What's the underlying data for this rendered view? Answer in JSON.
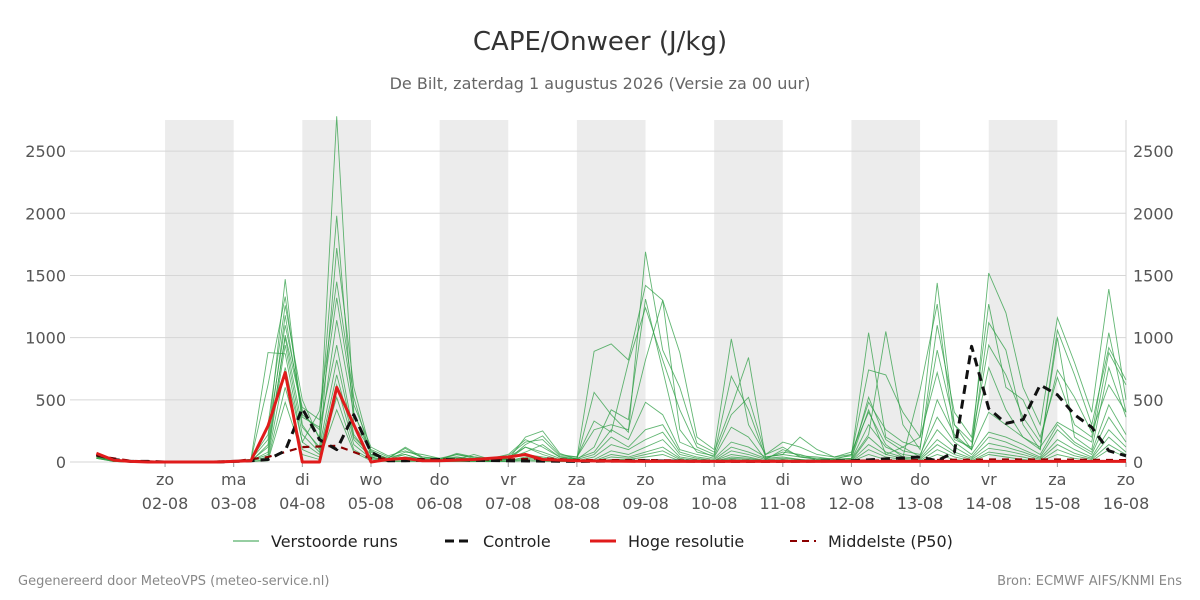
{
  "title": "CAPE/Onweer (J/kg)",
  "subtitle": "De Bilt, zaterdag  1 augustus 2026 (Versie za 00 uur)",
  "footer_left": "Gegenereerd door MeteoVPS (meteo-service.nl)",
  "footer_right": "Bron: ECMWF AIFS/KNMI Ens",
  "colors": {
    "perturbed": "#2e9e44",
    "control": "#111111",
    "high_res": "#e01b1b",
    "median": "#8b0000",
    "weekend_band": "#ececec",
    "grid": "#d6d6d6"
  },
  "chart_data": {
    "type": "line",
    "x_unit": "date (2026)",
    "xlim": [
      "2026-08-01T03:00",
      "2026-08-16T00:00"
    ],
    "ylim": [
      0,
      2750
    ],
    "yticks": [
      0,
      500,
      1000,
      1500,
      2000,
      2500
    ],
    "x_day_ticks": [
      {
        "day": "zo",
        "date": "02-08"
      },
      {
        "day": "ma",
        "date": "03-08"
      },
      {
        "day": "di",
        "date": "04-08"
      },
      {
        "day": "wo",
        "date": "05-08"
      },
      {
        "day": "do",
        "date": "06-08"
      },
      {
        "day": "vr",
        "date": "07-08"
      },
      {
        "day": "za",
        "date": "08-08"
      },
      {
        "day": "zo",
        "date": "09-08"
      },
      {
        "day": "ma",
        "date": "10-08"
      },
      {
        "day": "di",
        "date": "11-08"
      },
      {
        "day": "wo",
        "date": "12-08"
      },
      {
        "day": "do",
        "date": "13-08"
      },
      {
        "day": "vr",
        "date": "14-08"
      },
      {
        "day": "za",
        "date": "15-08"
      },
      {
        "day": "zo",
        "date": "16-08"
      }
    ],
    "shaded_days": [
      "2026-08-02",
      "2026-08-04",
      "2026-08-06",
      "2026-08-08",
      "2026-08-10",
      "2026-08-12",
      "2026-08-14"
    ],
    "grid": true,
    "legend_position": "bottom",
    "legend": [
      "Verstoorde runs",
      "Controle",
      "Hoge resolutie",
      "Middelste (P50)"
    ],
    "series": [
      {
        "name": "Controle",
        "x": [
          "2026-08-01T00:00",
          "2026-08-01T06:00",
          "2026-08-01T12:00",
          "2026-08-01T18:00",
          "2026-08-02T00:00",
          "2026-08-02T06:00",
          "2026-08-02T12:00",
          "2026-08-02T18:00",
          "2026-08-03T00:00",
          "2026-08-03T06:00",
          "2026-08-03T12:00",
          "2026-08-03T18:00",
          "2026-08-04T00:00",
          "2026-08-04T06:00",
          "2026-08-04T12:00",
          "2026-08-04T18:00",
          "2026-08-05T00:00",
          "2026-08-05T06:00",
          "2026-08-05T12:00",
          "2026-08-06T00:00",
          "2026-08-07T00:00",
          "2026-08-08T00:00",
          "2026-08-09T00:00",
          "2026-08-10T00:00",
          "2026-08-11T00:00",
          "2026-08-12T00:00",
          "2026-08-13T00:00",
          "2026-08-13T06:00",
          "2026-08-13T12:00",
          "2026-08-13T18:00",
          "2026-08-14T00:00",
          "2026-08-14T06:00",
          "2026-08-14T12:00",
          "2026-08-14T18:00",
          "2026-08-15T00:00",
          "2026-08-15T06:00",
          "2026-08-15T12:00",
          "2026-08-15T18:00",
          "2026-08-16T00:00"
        ],
        "y": [
          60,
          20,
          5,
          5,
          0,
          0,
          0,
          0,
          5,
          10,
          20,
          90,
          430,
          180,
          100,
          380,
          80,
          10,
          10,
          20,
          10,
          5,
          10,
          5,
          5,
          10,
          40,
          10,
          80,
          930,
          430,
          310,
          340,
          620,
          540,
          380,
          280,
          90,
          50
        ]
      },
      {
        "name": "Hoge resolutie",
        "x": [
          "2026-08-01T00:00",
          "2026-08-01T06:00",
          "2026-08-01T12:00",
          "2026-08-01T18:00",
          "2026-08-02T00:00",
          "2026-08-02T06:00",
          "2026-08-02T12:00",
          "2026-08-02T18:00",
          "2026-08-03T00:00",
          "2026-08-03T06:00",
          "2026-08-03T12:00",
          "2026-08-03T18:00",
          "2026-08-04T00:00",
          "2026-08-04T06:00",
          "2026-08-04T12:00",
          "2026-08-04T18:00",
          "2026-08-05T00:00",
          "2026-08-05T06:00",
          "2026-08-05T12:00",
          "2026-08-05T18:00",
          "2026-08-06T00:00",
          "2026-08-06T12:00",
          "2026-08-07T00:00",
          "2026-08-07T06:00",
          "2026-08-07T12:00",
          "2026-08-08T00:00",
          "2026-08-09T00:00",
          "2026-08-10T00:00",
          "2026-08-11T00:00",
          "2026-08-12T00:00",
          "2026-08-13T00:00",
          "2026-08-14T00:00",
          "2026-08-15T00:00",
          "2026-08-16T00:00"
        ],
        "y": [
          70,
          15,
          5,
          0,
          0,
          0,
          0,
          0,
          5,
          10,
          290,
          720,
          0,
          0,
          600,
          300,
          0,
          20,
          30,
          10,
          10,
          20,
          40,
          60,
          20,
          10,
          5,
          5,
          5,
          5,
          5,
          5,
          5,
          5
        ]
      },
      {
        "name": "Middelste (P50)",
        "x": [
          "2026-08-01T00:00",
          "2026-08-01T12:00",
          "2026-08-02T00:00",
          "2026-08-03T00:00",
          "2026-08-03T12:00",
          "2026-08-04T00:00",
          "2026-08-04T12:00",
          "2026-08-05T00:00",
          "2026-08-06T00:00",
          "2026-08-07T00:00",
          "2026-08-07T12:00",
          "2026-08-08T00:00",
          "2026-08-09T00:00",
          "2026-08-10T00:00",
          "2026-08-11T00:00",
          "2026-08-12T00:00",
          "2026-08-13T00:00",
          "2026-08-14T00:00",
          "2026-08-15T00:00",
          "2026-08-16T00:00"
        ],
        "y": [
          50,
          10,
          0,
          5,
          40,
          120,
          130,
          30,
          20,
          20,
          30,
          15,
          15,
          10,
          10,
          10,
          15,
          20,
          20,
          15
        ]
      }
    ],
    "perturbed_runs": {
      "name": "Verstoorde runs",
      "x": [
        "2026-08-01T00:00",
        "2026-08-01T06:00",
        "2026-08-01T12:00",
        "2026-08-01T18:00",
        "2026-08-02T00:00",
        "2026-08-02T06:00",
        "2026-08-02T12:00",
        "2026-08-02T18:00",
        "2026-08-03T00:00",
        "2026-08-03T06:00",
        "2026-08-03T12:00",
        "2026-08-03T18:00",
        "2026-08-04T00:00",
        "2026-08-04T06:00",
        "2026-08-04T12:00",
        "2026-08-04T18:00",
        "2026-08-05T00:00",
        "2026-08-05T06:00",
        "2026-08-05T12:00",
        "2026-08-05T18:00",
        "2026-08-06T00:00",
        "2026-08-06T06:00",
        "2026-08-06T12:00",
        "2026-08-06T18:00",
        "2026-08-07T00:00",
        "2026-08-07T06:00",
        "2026-08-07T12:00",
        "2026-08-07T18:00",
        "2026-08-08T00:00",
        "2026-08-08T06:00",
        "2026-08-08T12:00",
        "2026-08-08T18:00",
        "2026-08-09T00:00",
        "2026-08-09T06:00",
        "2026-08-09T12:00",
        "2026-08-09T18:00",
        "2026-08-10T00:00",
        "2026-08-10T06:00",
        "2026-08-10T12:00",
        "2026-08-10T18:00",
        "2026-08-11T00:00",
        "2026-08-11T06:00",
        "2026-08-11T12:00",
        "2026-08-11T18:00",
        "2026-08-12T00:00",
        "2026-08-12T06:00",
        "2026-08-12T12:00",
        "2026-08-12T18:00",
        "2026-08-13T00:00",
        "2026-08-13T06:00",
        "2026-08-13T12:00",
        "2026-08-13T18:00",
        "2026-08-14T00:00",
        "2026-08-14T06:00",
        "2026-08-14T12:00",
        "2026-08-14T18:00",
        "2026-08-15T00:00",
        "2026-08-15T06:00",
        "2026-08-15T12:00",
        "2026-08-15T18:00",
        "2026-08-16T00:00"
      ],
      "runs": [
        [
          40,
          10,
          5,
          0,
          0,
          0,
          0,
          0,
          10,
          20,
          180,
          1470,
          300,
          100,
          1720,
          600,
          80,
          30,
          120,
          40,
          20,
          60,
          30,
          10,
          40,
          120,
          60,
          20,
          30,
          890,
          950,
          820,
          1420,
          1300,
          880,
          200,
          100,
          990,
          300,
          60,
          120,
          40,
          30,
          20,
          30,
          420,
          60,
          120,
          200,
          1440,
          300,
          100,
          1520,
          1200,
          600,
          300,
          1160,
          800,
          400,
          1390,
          500
        ],
        [
          50,
          5,
          0,
          0,
          0,
          0,
          0,
          0,
          5,
          10,
          80,
          1020,
          420,
          200,
          2780,
          400,
          60,
          20,
          40,
          30,
          10,
          40,
          20,
          10,
          30,
          80,
          140,
          40,
          20,
          560,
          380,
          240,
          1690,
          900,
          600,
          150,
          80,
          440,
          840,
          30,
          80,
          60,
          20,
          10,
          20,
          220,
          1050,
          300,
          100,
          1100,
          400,
          200,
          1270,
          600,
          500,
          200,
          680,
          300,
          200,
          1040,
          400
        ],
        [
          30,
          10,
          0,
          0,
          0,
          0,
          0,
          0,
          5,
          15,
          620,
          1330,
          380,
          260,
          1980,
          300,
          100,
          40,
          60,
          20,
          10,
          20,
          60,
          20,
          20,
          140,
          210,
          60,
          40,
          330,
          240,
          800,
          1240,
          820,
          420,
          120,
          60,
          690,
          420,
          40,
          60,
          200,
          100,
          40,
          80,
          400,
          140,
          40,
          580,
          1270,
          200,
          100,
          1120,
          900,
          300,
          100,
          1060,
          700,
          300,
          920,
          660
        ],
        [
          40,
          15,
          5,
          0,
          0,
          0,
          0,
          0,
          10,
          20,
          880,
          870,
          160,
          410,
          1450,
          520,
          50,
          30,
          110,
          30,
          20,
          70,
          40,
          20,
          20,
          200,
          250,
          70,
          20,
          120,
          420,
          340,
          1310,
          740,
          160,
          100,
          40,
          280,
          200,
          20,
          100,
          50,
          40,
          20,
          60,
          740,
          700,
          400,
          200,
          720,
          180,
          120,
          760,
          420,
          200,
          120,
          320,
          240,
          160,
          880,
          620
        ],
        [
          50,
          10,
          0,
          0,
          0,
          0,
          0,
          0,
          5,
          10,
          300,
          1260,
          500,
          180,
          1140,
          390,
          90,
          20,
          80,
          60,
          30,
          40,
          20,
          30,
          60,
          180,
          120,
          40,
          30,
          80,
          260,
          180,
          480,
          380,
          100,
          60,
          30,
          160,
          120,
          40,
          60,
          40,
          20,
          30,
          50,
          1040,
          200,
          120,
          40,
          500,
          220,
          100,
          400,
          300,
          200,
          100,
          1000,
          200,
          100,
          760,
          360
        ],
        [
          60,
          5,
          0,
          0,
          0,
          0,
          0,
          0,
          5,
          5,
          140,
          1180,
          360,
          280,
          940,
          220,
          40,
          10,
          40,
          20,
          10,
          30,
          20,
          10,
          20,
          120,
          80,
          30,
          20,
          60,
          200,
          120,
          260,
          300,
          80,
          40,
          20,
          120,
          80,
          30,
          40,
          20,
          10,
          20,
          30,
          520,
          180,
          90,
          60,
          360,
          160,
          60,
          240,
          200,
          140,
          60,
          300,
          160,
          80,
          460,
          220
        ],
        [
          40,
          10,
          0,
          0,
          0,
          0,
          0,
          0,
          5,
          10,
          120,
          1000,
          280,
          120,
          820,
          200,
          60,
          20,
          60,
          20,
          10,
          20,
          30,
          10,
          30,
          60,
          40,
          20,
          10,
          40,
          140,
          100,
          180,
          240,
          60,
          30,
          10,
          90,
          60,
          20,
          30,
          20,
          10,
          10,
          20,
          300,
          120,
          60,
          40,
          260,
          120,
          40,
          200,
          160,
          100,
          40,
          260,
          140,
          60,
          360,
          160
        ],
        [
          30,
          5,
          0,
          0,
          0,
          0,
          0,
          0,
          5,
          10,
          60,
          940,
          220,
          80,
          700,
          180,
          40,
          10,
          30,
          20,
          10,
          20,
          10,
          10,
          10,
          40,
          30,
          10,
          10,
          20,
          90,
          60,
          120,
          180,
          40,
          20,
          10,
          60,
          40,
          10,
          20,
          10,
          5,
          10,
          10,
          200,
          80,
          40,
          30,
          180,
          80,
          30,
          150,
          120,
          80,
          30,
          180,
          100,
          40,
          260,
          120
        ],
        [
          50,
          10,
          5,
          0,
          0,
          0,
          0,
          0,
          5,
          10,
          40,
          760,
          160,
          60,
          620,
          140,
          30,
          10,
          20,
          10,
          10,
          10,
          10,
          5,
          10,
          30,
          20,
          10,
          5,
          10,
          60,
          40,
          80,
          120,
          30,
          10,
          5,
          40,
          30,
          10,
          10,
          10,
          5,
          5,
          10,
          140,
          60,
          30,
          20,
          140,
          60,
          20,
          110,
          90,
          60,
          20,
          140,
          70,
          30,
          200,
          80
        ],
        [
          40,
          5,
          0,
          0,
          0,
          0,
          0,
          0,
          5,
          5,
          20,
          600,
          100,
          40,
          520,
          100,
          20,
          5,
          10,
          10,
          5,
          5,
          5,
          5,
          5,
          20,
          10,
          5,
          5,
          5,
          40,
          30,
          60,
          90,
          20,
          5,
          5,
          30,
          20,
          5,
          5,
          5,
          5,
          5,
          5,
          100,
          40,
          20,
          10,
          100,
          40,
          10,
          80,
          60,
          40,
          10,
          100,
          50,
          20,
          140,
          60
        ],
        [
          30,
          5,
          0,
          0,
          0,
          0,
          0,
          0,
          0,
          5,
          10,
          480,
          60,
          20,
          420,
          80,
          10,
          5,
          5,
          5,
          5,
          5,
          5,
          5,
          5,
          10,
          5,
          5,
          5,
          5,
          20,
          20,
          40,
          60,
          10,
          5,
          5,
          20,
          10,
          5,
          5,
          5,
          5,
          5,
          5,
          60,
          20,
          10,
          5,
          60,
          20,
          5,
          60,
          40,
          20,
          5,
          60,
          30,
          10,
          100,
          40
        ],
        [
          60,
          10,
          5,
          0,
          0,
          0,
          0,
          0,
          10,
          20,
          220,
          1100,
          440,
          340,
          1320,
          460,
          120,
          50,
          90,
          40,
          30,
          60,
          40,
          30,
          50,
          160,
          180,
          50,
          40,
          260,
          300,
          260,
          820,
          1300,
          260,
          80,
          50,
          380,
          520,
          60,
          160,
          120,
          60,
          40,
          60,
          480,
          260,
          160,
          120,
          900,
          300,
          160,
          940,
          700,
          360,
          160,
          740,
          520,
          240,
          620,
          400
        ]
      ]
    }
  }
}
